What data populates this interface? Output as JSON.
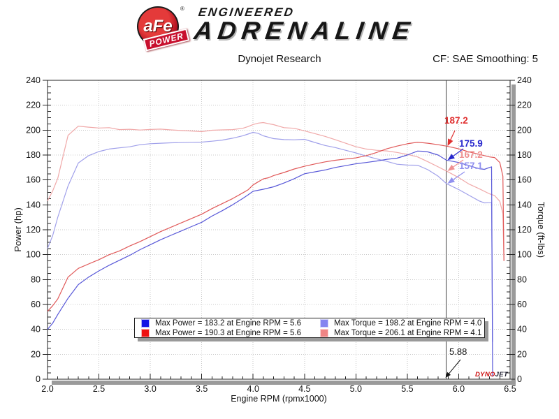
{
  "header": {
    "logo_afe": "aFe",
    "logo_reg": "®",
    "logo_power": "POWER",
    "brand_line1": "ENGINEERED",
    "brand_line2": "ADRENALINE",
    "subtitle": "Dynojet Research",
    "smoothing_label": "CF: SAE Smoothing: 5"
  },
  "chart_data": {
    "type": "line",
    "xlabel": "Engine RPM (rpmx1000)",
    "ylabel_left": "Power (hp)",
    "ylabel_right": "Torque (ft-lbs)",
    "xlim": [
      2.0,
      6.5
    ],
    "ylim_left": [
      0,
      240
    ],
    "ylim_right": [
      0,
      240
    ],
    "x_major_step": 0.5,
    "x_minor_step": 0.1,
    "y_major_step": 20,
    "y_minor_step": 5,
    "grid": "dotted",
    "series": [
      {
        "name": "torque-baseline",
        "legend": "Max Torque = 198.2 at Engine RPM = 4.0",
        "axis": "right",
        "color": "#a0a0ea",
        "swatch": "#8585f0",
        "swatch_border": "#cfcffa",
        "points": [
          [
            2.0,
            105.0
          ],
          [
            2.05,
            115.3
          ],
          [
            2.1,
            130.1
          ],
          [
            2.2,
            155.2
          ],
          [
            2.3,
            173.6
          ],
          [
            2.4,
            179.5
          ],
          [
            2.5,
            182.8
          ],
          [
            2.6,
            184.8
          ],
          [
            2.7,
            185.8
          ],
          [
            2.8,
            186.6
          ],
          [
            2.9,
            188.3
          ],
          [
            3.0,
            189.1
          ],
          [
            3.1,
            189.5
          ],
          [
            3.2,
            189.8
          ],
          [
            3.3,
            190.0
          ],
          [
            3.4,
            190.2
          ],
          [
            3.5,
            190.4
          ],
          [
            3.6,
            191.1
          ],
          [
            3.7,
            192.0
          ],
          [
            3.8,
            193.5
          ],
          [
            3.9,
            195.5
          ],
          [
            3.95,
            196.8
          ],
          [
            4.0,
            198.2
          ],
          [
            4.05,
            197.3
          ],
          [
            4.1,
            195.4
          ],
          [
            4.2,
            193.2
          ],
          [
            4.3,
            192.4
          ],
          [
            4.4,
            192.2
          ],
          [
            4.5,
            192.6
          ],
          [
            4.6,
            190.1
          ],
          [
            4.7,
            187.7
          ],
          [
            4.8,
            186.0
          ],
          [
            4.9,
            183.8
          ],
          [
            5.0,
            181.7
          ],
          [
            5.1,
            179.2
          ],
          [
            5.2,
            177.0
          ],
          [
            5.3,
            174.9
          ],
          [
            5.4,
            172.6
          ],
          [
            5.5,
            171.9
          ],
          [
            5.6,
            171.8
          ],
          [
            5.7,
            168.2
          ],
          [
            5.8,
            163.0
          ],
          [
            5.88,
            157.1
          ],
          [
            6.0,
            152.3
          ],
          [
            6.1,
            147.7
          ],
          [
            6.2,
            143.1
          ],
          [
            6.25,
            141.6
          ],
          [
            6.3,
            141.7
          ],
          [
            6.32,
            141.7
          ],
          [
            6.33,
            30
          ]
        ]
      },
      {
        "name": "torque-modified",
        "legend": "Max Torque = 206.1 at Engine RPM = 4.1",
        "axis": "right",
        "color": "#f0a8a8",
        "swatch": "#f08585",
        "swatch_border": "#fad2d2",
        "points": [
          [
            2.0,
            143.1
          ],
          [
            2.05,
            151.2
          ],
          [
            2.1,
            161.3
          ],
          [
            2.2,
            195.8
          ],
          [
            2.3,
            203.2
          ],
          [
            2.4,
            202.4
          ],
          [
            2.5,
            201.7
          ],
          [
            2.6,
            202.0
          ],
          [
            2.7,
            200.4
          ],
          [
            2.8,
            200.7
          ],
          [
            2.9,
            200.1
          ],
          [
            3.0,
            200.5
          ],
          [
            3.1,
            200.8
          ],
          [
            3.2,
            200.2
          ],
          [
            3.3,
            199.7
          ],
          [
            3.4,
            199.3
          ],
          [
            3.5,
            198.8
          ],
          [
            3.6,
            199.9
          ],
          [
            3.7,
            200.2
          ],
          [
            3.8,
            200.4
          ],
          [
            3.9,
            201.5
          ],
          [
            3.95,
            202.8
          ],
          [
            4.0,
            204.5
          ],
          [
            4.05,
            205.6
          ],
          [
            4.1,
            206.1
          ],
          [
            4.15,
            205.2
          ],
          [
            4.2,
            204.4
          ],
          [
            4.3,
            202.0
          ],
          [
            4.4,
            201.5
          ],
          [
            4.5,
            199.4
          ],
          [
            4.6,
            197.2
          ],
          [
            4.7,
            195.0
          ],
          [
            4.8,
            192.3
          ],
          [
            4.9,
            189.5
          ],
          [
            5.0,
            186.7
          ],
          [
            5.1,
            184.8
          ],
          [
            5.2,
            183.8
          ],
          [
            5.3,
            183.3
          ],
          [
            5.4,
            182.1
          ],
          [
            5.5,
            180.5
          ],
          [
            5.6,
            178.5
          ],
          [
            5.7,
            174.6
          ],
          [
            5.8,
            170.5
          ],
          [
            5.88,
            167.2
          ],
          [
            6.0,
            161.9
          ],
          [
            6.1,
            156.7
          ],
          [
            6.2,
            152.9
          ],
          [
            6.3,
            148.8
          ],
          [
            6.35,
            147.4
          ],
          [
            6.4,
            142.8
          ],
          [
            6.43,
            133.0
          ],
          [
            6.44,
            95
          ]
        ]
      },
      {
        "name": "power-baseline",
        "legend": "Max Power = 183.2 at Engine RPM = 5.6",
        "axis": "left",
        "color": "#5858d8",
        "swatch": "#1414e6",
        "swatch_border": "#b0b0f5",
        "points": [
          [
            2.0,
            40
          ],
          [
            2.05,
            45
          ],
          [
            2.1,
            52
          ],
          [
            2.2,
            65
          ],
          [
            2.3,
            76
          ],
          [
            2.4,
            82
          ],
          [
            2.5,
            87
          ],
          [
            2.6,
            91.5
          ],
          [
            2.7,
            95.5
          ],
          [
            2.8,
            99.5
          ],
          [
            2.9,
            104
          ],
          [
            3.0,
            108
          ],
          [
            3.1,
            112
          ],
          [
            3.2,
            115.5
          ],
          [
            3.3,
            119
          ],
          [
            3.4,
            122.5
          ],
          [
            3.5,
            126
          ],
          [
            3.6,
            131
          ],
          [
            3.7,
            135.3
          ],
          [
            3.8,
            140
          ],
          [
            3.9,
            145.2
          ],
          [
            3.95,
            148
          ],
          [
            4.0,
            150.9
          ],
          [
            4.1,
            152.5
          ],
          [
            4.2,
            154.5
          ],
          [
            4.3,
            157.5
          ],
          [
            4.4,
            161
          ],
          [
            4.5,
            165
          ],
          [
            4.6,
            166.5
          ],
          [
            4.7,
            168
          ],
          [
            4.8,
            170
          ],
          [
            4.9,
            171.5
          ],
          [
            5.0,
            173
          ],
          [
            5.1,
            174
          ],
          [
            5.2,
            175.2
          ],
          [
            5.3,
            176.5
          ],
          [
            5.4,
            177.5
          ],
          [
            5.5,
            180
          ],
          [
            5.6,
            183.2
          ],
          [
            5.65,
            183
          ],
          [
            5.7,
            182.5
          ],
          [
            5.8,
            180
          ],
          [
            5.88,
            175.9
          ],
          [
            6.0,
            174
          ],
          [
            6.1,
            171.5
          ],
          [
            6.2,
            169
          ],
          [
            6.25,
            168.5
          ],
          [
            6.3,
            170
          ],
          [
            6.32,
            170.5
          ],
          [
            6.33,
            2
          ]
        ]
      },
      {
        "name": "power-modified",
        "legend": "Max Power = 190.3 at Engine RPM = 5.6",
        "axis": "left",
        "color": "#e05858",
        "swatch": "#ee1111",
        "swatch_border": "#f5b0b0",
        "points": [
          [
            2.0,
            54.5
          ],
          [
            2.05,
            59
          ],
          [
            2.1,
            64.5
          ],
          [
            2.2,
            82
          ],
          [
            2.3,
            89
          ],
          [
            2.4,
            92.5
          ],
          [
            2.5,
            96
          ],
          [
            2.6,
            100
          ],
          [
            2.7,
            103
          ],
          [
            2.8,
            107
          ],
          [
            2.9,
            110.5
          ],
          [
            3.0,
            114.5
          ],
          [
            3.1,
            118.5
          ],
          [
            3.2,
            122
          ],
          [
            3.3,
            125.5
          ],
          [
            3.4,
            129
          ],
          [
            3.5,
            132.5
          ],
          [
            3.6,
            137
          ],
          [
            3.7,
            141
          ],
          [
            3.8,
            145
          ],
          [
            3.9,
            149.6
          ],
          [
            3.95,
            152
          ],
          [
            4.0,
            156
          ],
          [
            4.05,
            158.5
          ],
          [
            4.1,
            160.9
          ],
          [
            4.15,
            161.8
          ],
          [
            4.2,
            163.5
          ],
          [
            4.3,
            166
          ],
          [
            4.4,
            168.8
          ],
          [
            4.5,
            171
          ],
          [
            4.6,
            172.8
          ],
          [
            4.7,
            174.5
          ],
          [
            4.8,
            175.8
          ],
          [
            4.9,
            176.8
          ],
          [
            5.0,
            177.7
          ],
          [
            5.1,
            179.5
          ],
          [
            5.2,
            182
          ],
          [
            5.3,
            185
          ],
          [
            5.4,
            187.2
          ],
          [
            5.5,
            189
          ],
          [
            5.6,
            190.3
          ],
          [
            5.7,
            189.5
          ],
          [
            5.8,
            188.3
          ],
          [
            5.88,
            187.2
          ],
          [
            6.0,
            185
          ],
          [
            6.1,
            182.5
          ],
          [
            6.2,
            180.5
          ],
          [
            6.3,
            178.5
          ],
          [
            6.35,
            178
          ],
          [
            6.4,
            174
          ],
          [
            6.43,
            163
          ],
          [
            6.44,
            95
          ]
        ]
      }
    ],
    "legend_order": [
      "power-baseline",
      "power-modified",
      "torque-baseline",
      "torque-modified"
    ],
    "marker": {
      "rpm": 5.88,
      "label": "5.88"
    },
    "annotations": [
      {
        "text": "187.2",
        "value": 187.2,
        "color": "#e03030"
      },
      {
        "text": "175.9",
        "value": 175.9,
        "color": "#2727cd"
      },
      {
        "text": "167.2",
        "value": 167.2,
        "color": "#ef9090"
      },
      {
        "text": "157.1",
        "value": 157.1,
        "color": "#9090ef"
      }
    ],
    "watermark": {
      "part1": "DYNO",
      "part2": "JET"
    }
  }
}
